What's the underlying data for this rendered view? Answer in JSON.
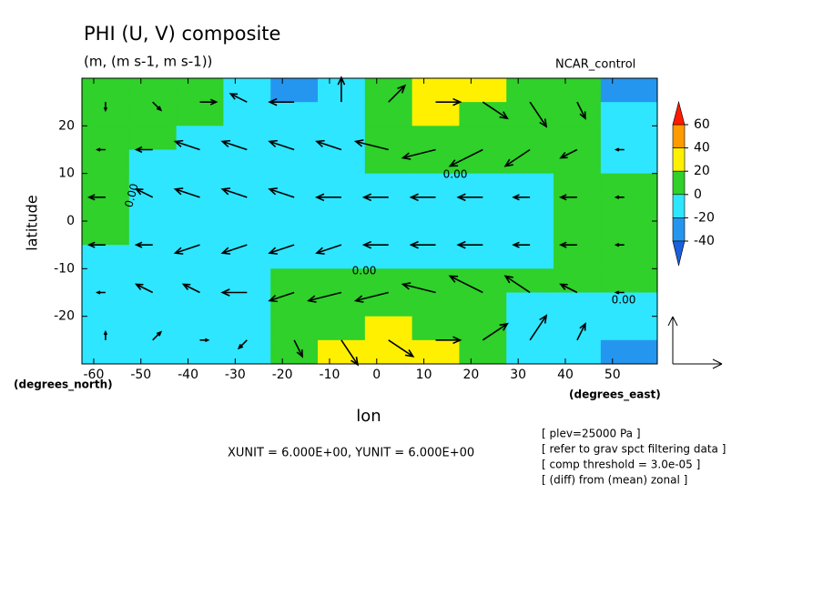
{
  "chart_data": {
    "type": "contour",
    "title": "PHI (U, V) composite",
    "subtitle": "(m, (m s-1, m s-1))",
    "model": "NCAR_control",
    "xlabel": "lon",
    "ylabel": "latitude",
    "x_unit": "(degrees_east)",
    "y_unit": "(degrees_north)",
    "xlim": [
      -62.5,
      59.5
    ],
    "ylim": [
      -30,
      30
    ],
    "xticks": [
      -60,
      -50,
      -40,
      -30,
      -20,
      -10,
      0,
      10,
      20,
      30,
      40,
      50
    ],
    "yticks": [
      -20,
      -10,
      0,
      10,
      20
    ],
    "levels": [
      -40,
      -20,
      0,
      20,
      40,
      60
    ],
    "level_colors": [
      "#1a5fdc",
      "#2596ef",
      "#2ee6ff",
      "#2fd12a",
      "#fff000",
      "#ff9a00",
      "#ff1a00"
    ],
    "lon": [
      -57.5,
      -47.5,
      -37.5,
      -27.5,
      -17.5,
      -7.5,
      2.5,
      12.5,
      22.5,
      32.5,
      42.5,
      52.5
    ],
    "lat": [
      27.5,
      22.5,
      17.5,
      12.5,
      7.5,
      2.5,
      -2.5,
      -7.5,
      -12.5,
      -17.5,
      -22.5,
      -27.5
    ],
    "z": [
      [
        5,
        5,
        5,
        -10,
        -25,
        -10,
        10,
        25,
        25,
        5,
        5,
        -25
      ],
      [
        5,
        5,
        5,
        -10,
        -15,
        -10,
        5,
        20,
        18,
        8,
        5,
        -5
      ],
      [
        5,
        5,
        -5,
        -10,
        -10,
        -5,
        5,
        10,
        10,
        5,
        2,
        -5
      ],
      [
        5,
        -5,
        -8,
        -10,
        -10,
        -5,
        5,
        8,
        8,
        5,
        3,
        -2
      ],
      [
        5,
        -5,
        -8,
        -10,
        -10,
        -8,
        -5,
        -5,
        -5,
        -2,
        3,
        5
      ],
      [
        5,
        -5,
        -10,
        -10,
        -10,
        -10,
        -10,
        -8,
        -8,
        -3,
        5,
        5
      ],
      [
        3,
        -5,
        -10,
        -10,
        -10,
        -10,
        -10,
        -10,
        -8,
        -3,
        5,
        5
      ],
      [
        -3,
        -5,
        -8,
        -10,
        -10,
        -10,
        -8,
        -8,
        -5,
        -2,
        5,
        5
      ],
      [
        -5,
        -8,
        -10,
        -5,
        5,
        5,
        5,
        5,
        5,
        5,
        5,
        5
      ],
      [
        -8,
        -8,
        -8,
        -5,
        2,
        8,
        10,
        10,
        5,
        -5,
        -8,
        -8
      ],
      [
        -8,
        -10,
        -8,
        -5,
        5,
        15,
        22,
        18,
        5,
        -8,
        -10,
        -10
      ],
      [
        -10,
        -12,
        -8,
        -5,
        5,
        20,
        25,
        20,
        5,
        -10,
        -15,
        -25
      ]
    ],
    "vector_lat": [
      25,
      15,
      5,
      -5,
      -15,
      -25
    ],
    "u": [
      [
        0,
        1,
        2,
        -2,
        -3,
        0,
        2,
        3,
        3,
        2,
        1,
        0
      ],
      [
        -1,
        -2,
        -3,
        -3,
        -3,
        -3,
        -4,
        -4,
        -4,
        -3,
        -2,
        -1
      ],
      [
        -2,
        -2,
        -3,
        -3,
        -3,
        -3,
        -3,
        -3,
        -3,
        -2,
        -2,
        -1
      ],
      [
        -2,
        -2,
        -3,
        -3,
        -3,
        -3,
        -3,
        -3,
        -3,
        -2,
        -2,
        -1
      ],
      [
        -1,
        -2,
        -2,
        -3,
        -3,
        -4,
        -4,
        -4,
        -4,
        -3,
        -2,
        -1
      ],
      [
        0,
        1,
        1,
        -1,
        1,
        2,
        3,
        3,
        3,
        2,
        1,
        0
      ]
    ],
    "v": [
      [
        -1,
        -1,
        0,
        1,
        0,
        3,
        2,
        0,
        -2,
        -3,
        -2,
        0
      ],
      [
        0,
        0,
        1,
        1,
        1,
        1,
        1,
        -1,
        -2,
        -2,
        -1,
        0
      ],
      [
        0,
        1,
        1,
        1,
        1,
        0,
        0,
        0,
        0,
        0,
        0,
        0
      ],
      [
        0,
        0,
        -1,
        -1,
        -1,
        -1,
        0,
        0,
        0,
        0,
        0,
        0
      ],
      [
        0,
        1,
        1,
        0,
        -1,
        -1,
        -1,
        1,
        2,
        2,
        1,
        0
      ],
      [
        1,
        1,
        0,
        -1,
        -2,
        -3,
        -2,
        0,
        2,
        3,
        2,
        0
      ]
    ],
    "contour_labels": [
      "0.00",
      "0.00",
      "0.00",
      "0.00"
    ],
    "vector_units": "XUNIT = 6.000E+00, YUNIT = 6.000E+00",
    "notes": [
      "[ plev=25000 Pa ]",
      "[ refer to grav spct filtering data ]",
      "[ comp threshold = 3.0e-05 ]",
      "[ (diff) from (mean) zonal ]"
    ]
  }
}
